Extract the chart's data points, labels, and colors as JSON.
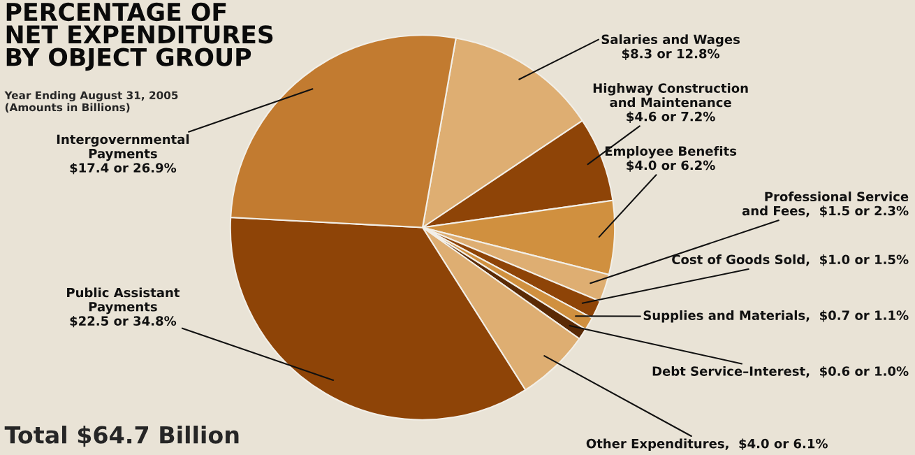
{
  "chart_data": {
    "type": "pie",
    "title": "PERCENTAGE OF\nNET EXPENDITURES\nBY OBJECT GROUP",
    "subtitle": "Year Ending August 31, 2005\n(Amounts in Billions)",
    "categories": [
      "Salaries and Wages",
      "Highway Construction\nand Maintenance",
      "Employee Benefits",
      "Professional Service\nand Fees",
      "Cost of Goods Sold",
      "Supplies and Materials",
      "Debt Service–Interest",
      "Other Expenditures",
      "Public Assistant\nPayments",
      "Intergovernmental\nPayments"
    ],
    "values": [
      8.3,
      4.6,
      4.0,
      1.5,
      1.0,
      0.7,
      0.6,
      4.0,
      22.5,
      17.4
    ],
    "value_labels": [
      "$8.3 or 12.8%",
      "$4.6 or 7.2%",
      "$4.0 or 6.2%",
      "$1.5 or 2.3%",
      "$1.0 or 1.5%",
      "$0.7 or 1.1%",
      "$0.6 or 1.0%",
      "$4.0 or 6.1%",
      "$22.5 or 34.8%",
      "$17.4 or 26.9%"
    ],
    "colors": [
      "#deae72",
      "#8e4407",
      "#d0903f",
      "#deae72",
      "#8e4407",
      "#d0903f",
      "#5a2a05",
      "#deae72",
      "#8e4407",
      "#c27b30"
    ],
    "annotations": [
      "Total $64.7 Billion"
    ]
  }
}
